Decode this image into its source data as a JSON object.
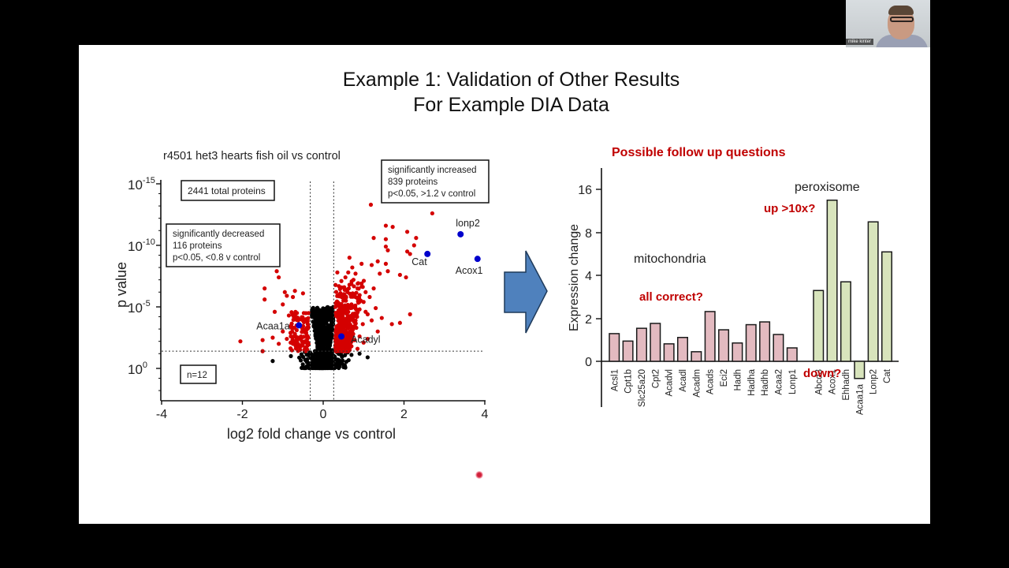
{
  "video_call": {
    "participant_name": "mike kinter"
  },
  "slide": {
    "title_line1": "Example 1: Validation of Other Results",
    "title_line2": "For Example DIA Data",
    "arrow_color": "#4f81bd"
  },
  "chart_data": [
    {
      "type": "scatter",
      "title": "r4501 het3 hearts fish oil vs control",
      "xlabel": "log2 fold change vs control",
      "ylabel": "p value",
      "xlim": [
        -4,
        4
      ],
      "x_ticks": [
        "-4",
        "-2",
        "0",
        "2",
        "4"
      ],
      "y_ticks": [
        {
          "base": "10",
          "exp": "-15",
          "neglog10": 15
        },
        {
          "base": "10",
          "exp": "-10",
          "neglog10": 10
        },
        {
          "base": "10",
          "exp": "-5",
          "neglog10": 5
        },
        {
          "base": "10",
          "exp": "0",
          "neglog10": 0
        }
      ],
      "ylim_neglog10": [
        -2,
        15.2
      ],
      "thresholds": {
        "x_low": -0.32,
        "x_high": 0.26,
        "neglog10_p": 1.4
      },
      "colors": {
        "significant": "#d40000",
        "not_significant": "#000000",
        "highlight": "#0000cc"
      },
      "annotations": {
        "total": "2441 total proteins",
        "decreased": [
          "significantly decreased",
          "116 proteins",
          "p<0.05, <0.8 v control"
        ],
        "increased": [
          "significantly increased",
          "839 proteins",
          "p<0.05, >1.2 v control"
        ],
        "n": "n=12"
      },
      "highlighted_points": [
        {
          "label": "lonp2",
          "x": 3.4,
          "neglog10_p": 10.9
        },
        {
          "label": "Cat",
          "x": 2.58,
          "neglog10_p": 9.3
        },
        {
          "label": "Acox1",
          "x": 3.82,
          "neglog10_p": 8.9
        },
        {
          "label": "Acaa1a",
          "x": -0.6,
          "neglog10_p": 3.5
        },
        {
          "label": "Acadyl",
          "x": 0.45,
          "neglog10_p": 2.6
        }
      ],
      "significant_points_sample": [
        [
          1.18,
          13.3
        ],
        [
          2.7,
          12.6
        ],
        [
          1.55,
          11.6
        ],
        [
          1.72,
          11.5
        ],
        [
          2.08,
          11.1
        ],
        [
          1.25,
          10.6
        ],
        [
          1.55,
          10.5
        ],
        [
          1.55,
          9.9
        ],
        [
          1.6,
          9.6
        ],
        [
          2.3,
          10.6
        ],
        [
          2.25,
          10.0
        ],
        [
          2.08,
          9.5
        ],
        [
          2.15,
          9.3
        ],
        [
          1.35,
          8.7
        ],
        [
          1.55,
          8.5
        ],
        [
          0.65,
          9.0
        ],
        [
          0.95,
          8.5
        ],
        [
          1.2,
          8.4
        ],
        [
          1.4,
          7.7
        ],
        [
          1.6,
          7.9
        ],
        [
          1.9,
          7.6
        ],
        [
          2.05,
          7.4
        ],
        [
          0.35,
          7.8
        ],
        [
          0.45,
          7.1
        ],
        [
          0.55,
          7.4
        ],
        [
          0.65,
          6.8
        ],
        [
          0.75,
          7.2
        ],
        [
          0.85,
          6.5
        ],
        [
          0.95,
          6.9
        ],
        [
          1.05,
          6.2
        ],
        [
          1.15,
          5.8
        ],
        [
          1.25,
          6.5
        ],
        [
          0.4,
          6.0
        ],
        [
          0.5,
          5.5
        ],
        [
          0.6,
          6.2
        ],
        [
          0.7,
          5.2
        ],
        [
          0.8,
          5.8
        ],
        [
          0.9,
          4.8
        ],
        [
          1.0,
          5.4
        ],
        [
          1.1,
          4.4
        ],
        [
          1.3,
          4.9
        ],
        [
          1.45,
          4.1
        ],
        [
          1.7,
          3.6
        ],
        [
          1.9,
          3.7
        ],
        [
          2.15,
          4.4
        ],
        [
          1.35,
          3.0
        ],
        [
          1.0,
          2.1
        ],
        [
          1.1,
          2.4
        ],
        [
          0.3,
          5.0
        ],
        [
          0.35,
          4.2
        ],
        [
          0.42,
          3.5
        ],
        [
          0.5,
          4.5
        ],
        [
          0.58,
          3.8
        ],
        [
          0.66,
          3.0
        ],
        [
          0.74,
          4.0
        ],
        [
          0.82,
          3.3
        ],
        [
          0.9,
          2.6
        ],
        [
          0.98,
          3.6
        ],
        [
          0.32,
          3.0
        ],
        [
          0.4,
          2.2
        ],
        [
          0.55,
          2.0
        ],
        [
          0.7,
          1.8
        ],
        [
          0.85,
          1.6
        ],
        [
          0.3,
          2.4
        ],
        [
          0.62,
          2.6
        ],
        [
          0.78,
          2.3
        ],
        [
          0.45,
          1.7
        ],
        [
          1.2,
          3.9
        ],
        [
          1.05,
          4.6
        ],
        [
          0.52,
          6.6
        ],
        [
          0.62,
          7.8
        ],
        [
          0.72,
          8.2
        ],
        [
          0.8,
          7.7
        ],
        [
          -0.45,
          2.2
        ],
        [
          -0.5,
          3.0
        ],
        [
          -0.55,
          2.6
        ],
        [
          -0.62,
          3.9
        ],
        [
          -0.7,
          2.8
        ],
        [
          -0.75,
          2.0
        ],
        [
          -0.8,
          3.4
        ],
        [
          -0.9,
          2.4
        ],
        [
          -0.65,
          4.5
        ],
        [
          -0.55,
          4.0
        ],
        [
          -0.4,
          3.8
        ],
        [
          -0.45,
          1.6
        ],
        [
          -0.6,
          1.9
        ],
        [
          -0.85,
          4.3
        ],
        [
          -1.0,
          3.0
        ],
        [
          -1.1,
          2.0
        ],
        [
          -1.25,
          2.5
        ],
        [
          -1.5,
          2.3
        ],
        [
          -2.05,
          2.2
        ],
        [
          -1.5,
          1.4
        ],
        [
          -1.2,
          4.6
        ],
        [
          -1.0,
          5.2
        ],
        [
          -0.9,
          5.9
        ],
        [
          -0.75,
          5.8
        ],
        [
          -0.7,
          6.3
        ],
        [
          -0.5,
          6.1
        ],
        [
          -1.1,
          7.4
        ],
        [
          -1.15,
          7.9
        ],
        [
          -1.45,
          6.5
        ],
        [
          -1.45,
          5.6
        ],
        [
          -0.95,
          6.2
        ],
        [
          -0.4,
          2.6
        ],
        [
          -0.48,
          4.5
        ]
      ],
      "nonsignificant_cloud": "V-shaped dense black cloud centered at x=0, from -log10 p ≈ 0.05 up to ≈ 5 near |x|≈0.3, spreading to |x|≈1 below the threshold line"
    },
    {
      "type": "bar",
      "title": "Possible follow up questions",
      "ylabel": "Expression change",
      "y_ticks": [
        "0",
        "2",
        "4",
        "8",
        "16"
      ],
      "y_tick_values": [
        0,
        2,
        4,
        8,
        16
      ],
      "groups": [
        {
          "name": "mitochondria",
          "color": "#e3bac0",
          "note": "all correct?",
          "categories": [
            "Acsl1",
            "Cpt1b",
            "Slc25a20",
            "Cpt2",
            "Acadvl",
            "Acadl",
            "Acadm",
            "Acads",
            "Eci2",
            "Hadh",
            "Hadha",
            "Hadhb",
            "Acaa2",
            "Lonp1"
          ],
          "values": [
            1.3,
            0.95,
            1.55,
            1.78,
            0.82,
            1.12,
            0.45,
            2.33,
            1.48,
            0.86,
            1.72,
            1.85,
            1.26,
            0.63
          ]
        },
        {
          "name": "peroxisome",
          "color": "#d8e4bc",
          "note_up": "up >10x?",
          "note_down": "down?",
          "categories": [
            "Abcd3",
            "Acox1",
            "Ehhadh",
            "Acaa1a",
            "Lonp2",
            "Cat"
          ],
          "values": [
            3.3,
            14.0,
            3.7,
            -0.8,
            10.0,
            6.2
          ]
        }
      ],
      "annotation_color": "#c00000"
    }
  ]
}
